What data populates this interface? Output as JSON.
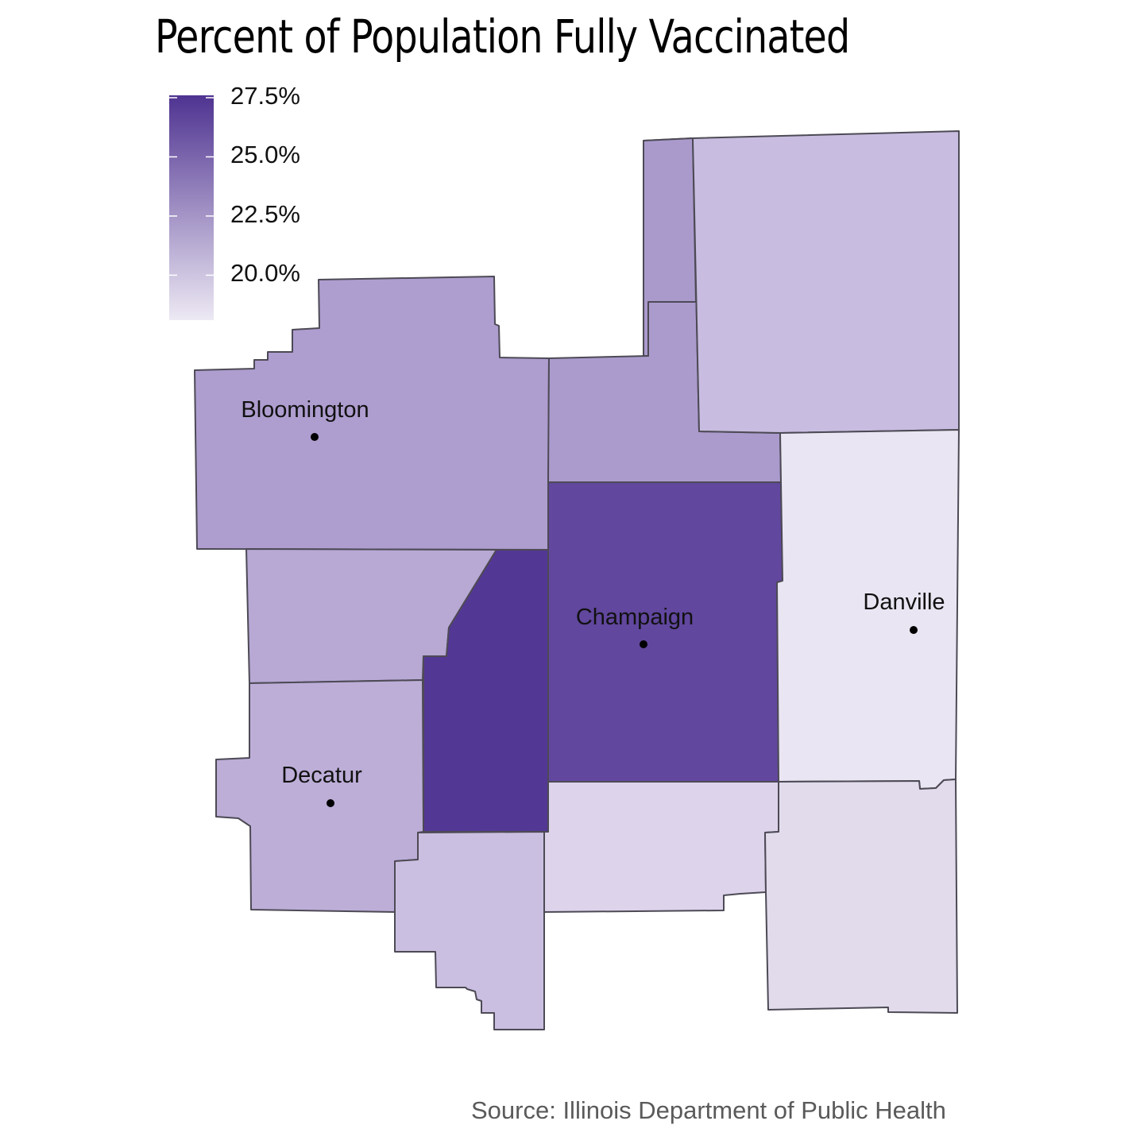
{
  "title": "Percent of Population Fully Vaccinated",
  "source": "Source: Illinois Department of Public Health",
  "legend": {
    "ticks": [
      {
        "label": "27.5%",
        "value": 27.5
      },
      {
        "label": "25.0%",
        "value": 25.0
      },
      {
        "label": "22.5%",
        "value": 22.5
      },
      {
        "label": "20.0%",
        "value": 20.0
      }
    ],
    "scale_min": 18.1,
    "scale_max": 27.6,
    "color_low": "#ede9f4",
    "color_high": "#4f3391"
  },
  "cities": [
    {
      "name": "Bloomington"
    },
    {
      "name": "Champaign"
    },
    {
      "name": "Danville"
    },
    {
      "name": "Decatur"
    }
  ],
  "county_colors": {
    "mclean": "#ae9dcf",
    "livingston": "#aa9acc",
    "ford": "#ab9bcd",
    "iroquois": "#c8bde0",
    "dewitt": "#b7a8d4",
    "piatt": "#533795",
    "champaign": "#61479e",
    "vermilion": "#e9e5f2",
    "macon": "#bdaed8",
    "moultrie": "#cbbfe1",
    "douglas": "#ddd4eb",
    "edgar": "#e1dbec"
  }
}
